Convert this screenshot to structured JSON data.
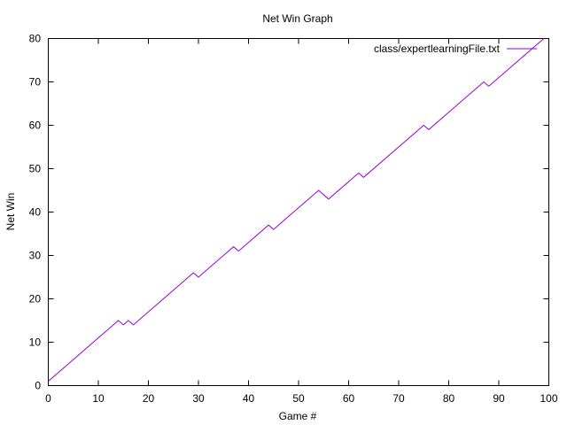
{
  "chart_data": {
    "type": "line",
    "title": "Net Win Graph",
    "xlabel": "Game #",
    "ylabel": "Net Win",
    "xlim": [
      0,
      100
    ],
    "ylim": [
      0,
      80
    ],
    "xticks": [
      0,
      10,
      20,
      30,
      40,
      50,
      60,
      70,
      80,
      90,
      100
    ],
    "yticks": [
      0,
      10,
      20,
      30,
      40,
      50,
      60,
      70,
      80
    ],
    "xtick_labels": [
      "0",
      "10",
      "20",
      "30",
      "40",
      "50",
      "60",
      "70",
      "80",
      "90",
      "100"
    ],
    "ytick_labels": [
      "0",
      "10",
      "20",
      "30",
      "40",
      "50",
      "60",
      "70",
      "80"
    ],
    "grid": false,
    "legend_position": "top-right",
    "series": [
      {
        "name": "class/expertlearningFile.txt",
        "color": "#9400d3",
        "x": [
          0,
          14,
          15,
          16,
          17,
          29,
          30,
          37,
          38,
          44,
          45,
          54,
          56,
          62,
          63,
          75,
          76,
          87,
          88,
          99
        ],
        "y": [
          1,
          15,
          14,
          15,
          14,
          26,
          25,
          32,
          31,
          37,
          36,
          45,
          43,
          49,
          48,
          60,
          59,
          70,
          69,
          80
        ]
      }
    ]
  }
}
